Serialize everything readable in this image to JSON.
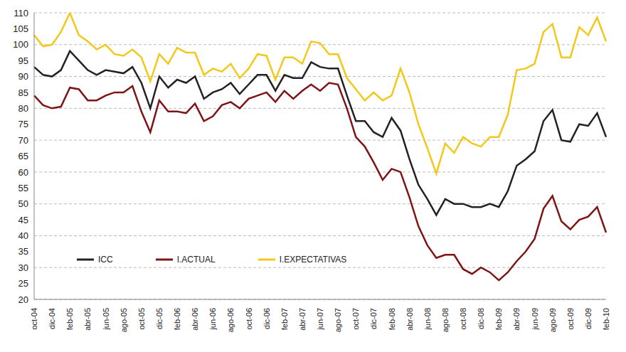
{
  "chart_data": {
    "type": "line",
    "categories": [
      "oct-04",
      null,
      "dic-04",
      null,
      "feb-05",
      null,
      "abr-05",
      null,
      "jun-05",
      null,
      "ago-05",
      null,
      "oct-05",
      null,
      "dic-05",
      null,
      "feb-06",
      null,
      "abr-06",
      null,
      "jun-06",
      null,
      "ago-06",
      null,
      "oct-06",
      null,
      "dic-06",
      null,
      "feb-07",
      null,
      "abr-07",
      null,
      "jun-07",
      null,
      "ago-07",
      null,
      "oct-07",
      null,
      "dic-07",
      null,
      "feb-08",
      null,
      "abr-08",
      null,
      "jun-08",
      null,
      "ago-08",
      null,
      "oct-08",
      null,
      "dic-08",
      null,
      "feb-09",
      null,
      "abr-09",
      null,
      "jun-09",
      null,
      "ago-09",
      null,
      "oct-09",
      null,
      "dic-09",
      null,
      "feb-10"
    ],
    "series": [
      {
        "name": "ICC",
        "color": "#222222",
        "values": [
          93,
          90.5,
          90,
          92,
          98,
          95,
          92,
          90.5,
          92,
          91.5,
          91,
          93,
          88,
          80,
          90,
          86.5,
          89,
          88,
          90,
          83,
          85,
          86,
          88,
          84.5,
          87.5,
          90.5,
          90.5,
          85.5,
          90.5,
          89.5,
          89.5,
          94.5,
          93,
          92.5,
          92.5,
          84,
          76,
          76,
          72.5,
          71,
          77,
          73,
          64,
          56,
          51.5,
          46.5,
          51.5,
          50,
          50,
          49,
          49,
          50,
          49,
          54,
          62,
          64,
          66.5,
          76,
          79.5,
          70,
          69.5,
          75,
          74.5,
          78.5,
          71
        ]
      },
      {
        "name": "I.ACTUAL",
        "color": "#7f1416",
        "values": [
          84,
          81,
          80,
          80.5,
          86.5,
          86,
          82.5,
          82.5,
          84,
          85,
          85,
          87,
          79,
          72.5,
          82.5,
          79,
          79,
          78.5,
          81.5,
          76,
          77.5,
          81,
          82,
          80,
          83,
          84,
          85,
          82,
          85.5,
          83,
          85.5,
          87.5,
          85.5,
          88,
          87.5,
          80,
          71,
          68,
          63,
          57.5,
          61,
          60,
          52,
          43,
          37,
          33,
          34,
          34,
          29.5,
          28,
          30,
          28.5,
          26,
          28.5,
          32,
          35,
          39,
          48.5,
          52.5,
          44.5,
          42,
          45,
          46,
          49,
          41
        ]
      },
      {
        "name": "I.EXPECTATIVAS",
        "color": "#f2c81a",
        "values": [
          103,
          99.5,
          100,
          104,
          110,
          103,
          101,
          98.5,
          100,
          97,
          96.5,
          98.5,
          96,
          88.5,
          97,
          94,
          99,
          97.5,
          97.5,
          90.5,
          92.5,
          91.5,
          94,
          89.5,
          92.5,
          97,
          96.5,
          89,
          96,
          96,
          94,
          101,
          100.5,
          97,
          97,
          89.5,
          86,
          82.5,
          85,
          82.5,
          84,
          92.5,
          85,
          75,
          67.5,
          59.5,
          69,
          66,
          71,
          69,
          68,
          71,
          71,
          78,
          92,
          92.5,
          94,
          104,
          106.5,
          96,
          96,
          105.5,
          103,
          108.5,
          101
        ]
      }
    ],
    "ylim": [
      20,
      110
    ],
    "yticks": [
      20,
      25,
      30,
      35,
      40,
      45,
      50,
      55,
      60,
      65,
      70,
      75,
      80,
      85,
      90,
      95,
      100,
      105,
      110
    ],
    "grid": true,
    "legend": "lower left"
  }
}
